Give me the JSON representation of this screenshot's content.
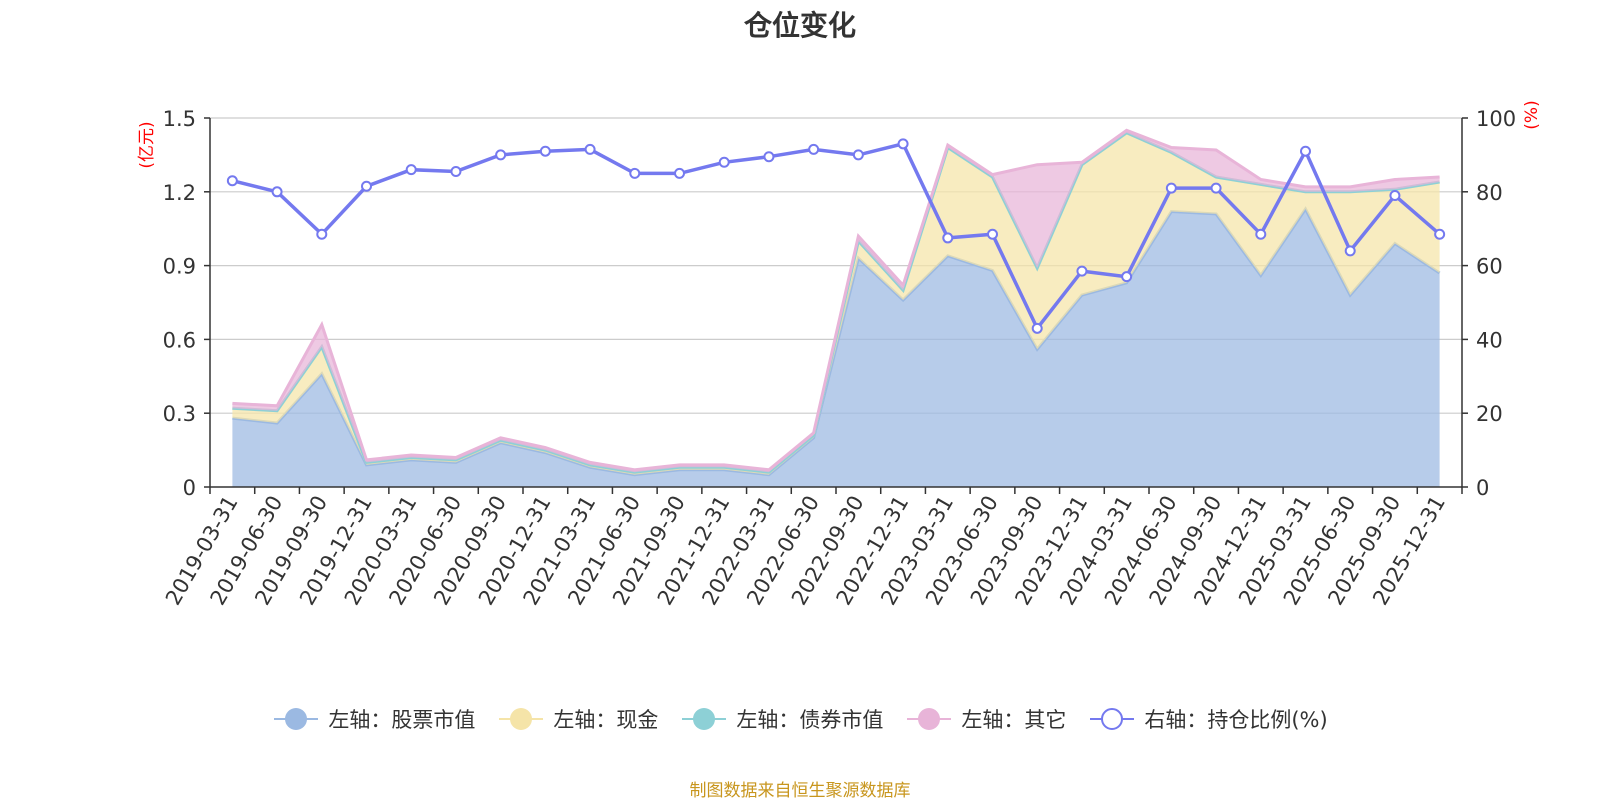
{
  "footer": "制图数据来自恒生聚源数据库",
  "chart_data": {
    "type": "area",
    "title": "仓位变化",
    "left_axis_unit": "(亿元)",
    "right_axis_unit": "(%)",
    "ylim_left": [
      0,
      1.5
    ],
    "yticks_left": [
      "0",
      "0.3",
      "0.6",
      "0.9",
      "1.2",
      "1.5"
    ],
    "ylim_right": [
      0,
      100
    ],
    "yticks_right": [
      "0",
      "20",
      "40",
      "60",
      "80",
      "100"
    ],
    "grid": true,
    "legend_position": "bottom",
    "categories": [
      "2019-03-31",
      "2019-06-30",
      "2019-09-30",
      "2019-12-31",
      "2020-03-31",
      "2020-06-30",
      "2020-09-30",
      "2020-12-31",
      "2021-03-31",
      "2021-06-30",
      "2021-09-30",
      "2021-12-31",
      "2022-03-31",
      "2022-06-30",
      "2022-09-30",
      "2022-12-31",
      "2023-03-31",
      "2023-06-30",
      "2023-09-30",
      "2023-12-31",
      "2024-03-31",
      "2024-06-30",
      "2024-09-30",
      "2024-12-31",
      "2025-03-31",
      "2025-06-30",
      "2025-09-30",
      "2025-12-31"
    ],
    "series": [
      {
        "name": "左轴：股票市值",
        "axis": "left",
        "color": "#9bb9e2",
        "values": [
          0.28,
          0.26,
          0.46,
          0.09,
          0.11,
          0.1,
          0.18,
          0.14,
          0.08,
          0.05,
          0.07,
          0.07,
          0.05,
          0.2,
          0.93,
          0.76,
          0.94,
          0.88,
          0.56,
          0.78,
          0.83,
          1.12,
          1.11,
          0.86,
          1.13,
          0.78,
          0.99,
          0.87
        ]
      },
      {
        "name": "左轴：现金",
        "axis": "left",
        "color": "#f5e4a8",
        "values": [
          0.04,
          0.05,
          0.11,
          0.01,
          0.01,
          0.01,
          0.01,
          0.01,
          0.01,
          0.01,
          0.01,
          0.01,
          0.01,
          0.01,
          0.07,
          0.04,
          0.44,
          0.38,
          0.33,
          0.53,
          0.61,
          0.24,
          0.15,
          0.37,
          0.07,
          0.42,
          0.22,
          0.37
        ]
      },
      {
        "name": "左轴：债券市值",
        "axis": "left",
        "color": "#8dd0d6",
        "values": [
          0,
          0,
          0,
          0,
          0,
          0,
          0,
          0,
          0,
          0,
          0,
          0,
          0,
          0,
          0,
          0,
          0,
          0,
          0,
          0,
          0,
          0,
          0,
          0,
          0,
          0,
          0,
          0
        ]
      },
      {
        "name": "左轴：其它",
        "axis": "left",
        "color": "#e8b4d8",
        "values": [
          0.02,
          0.02,
          0.09,
          0.01,
          0.01,
          0.01,
          0.01,
          0.01,
          0.01,
          0.01,
          0.01,
          0.01,
          0.01,
          0.01,
          0.02,
          0.02,
          0.01,
          0.01,
          0.42,
          0.01,
          0.01,
          0.02,
          0.11,
          0.02,
          0.02,
          0.02,
          0.04,
          0.02
        ]
      },
      {
        "name": "右轴：持仓比例(%)",
        "axis": "right",
        "color": "#7479ef",
        "values": [
          83.0,
          80.0,
          68.5,
          81.5,
          86.0,
          85.5,
          90.0,
          91.0,
          91.5,
          85.0,
          85.0,
          88.0,
          89.5,
          91.5,
          90.0,
          93.0,
          67.5,
          68.5,
          43.0,
          58.5,
          57.0,
          81.0,
          81.0,
          68.5,
          91.0,
          64.0,
          79.0,
          68.5
        ]
      }
    ]
  }
}
